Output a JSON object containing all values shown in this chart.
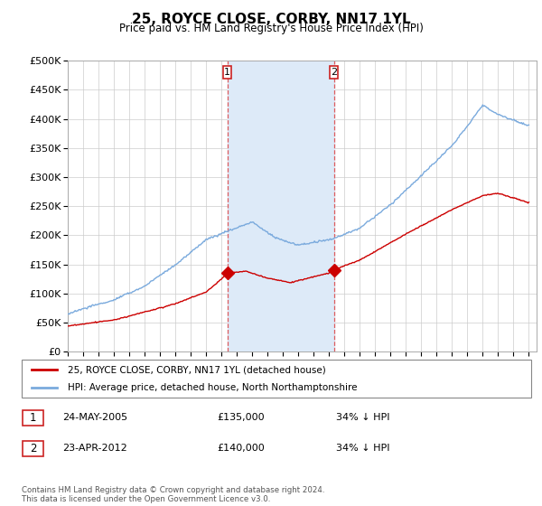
{
  "title": "25, ROYCE CLOSE, CORBY, NN17 1YL",
  "subtitle": "Price paid vs. HM Land Registry's House Price Index (HPI)",
  "ylim": [
    0,
    500000
  ],
  "yticks": [
    0,
    50000,
    100000,
    150000,
    200000,
    250000,
    300000,
    350000,
    400000,
    450000,
    500000
  ],
  "ytick_labels": [
    "£0",
    "£50K",
    "£100K",
    "£150K",
    "£200K",
    "£250K",
    "£300K",
    "£350K",
    "£400K",
    "£450K",
    "£500K"
  ],
  "xlim_start": 1995.0,
  "xlim_end": 2025.5,
  "sale1_x": 2005.39,
  "sale1_y": 135000,
  "sale1_label": "1",
  "sale2_x": 2012.31,
  "sale2_y": 140000,
  "sale2_label": "2",
  "shade_color": "#ddeaf8",
  "vline_color": "#dd4444",
  "red_line_color": "#cc0000",
  "blue_line_color": "#7aaadd",
  "legend_line1": "25, ROYCE CLOSE, CORBY, NN17 1YL (detached house)",
  "legend_line2": "HPI: Average price, detached house, North Northamptonshire",
  "footnote": "Contains HM Land Registry data © Crown copyright and database right 2024.\nThis data is licensed under the Open Government Licence v3.0.",
  "table_row1": [
    "1",
    "24-MAY-2005",
    "£135,000",
    "34% ↓ HPI"
  ],
  "table_row2": [
    "2",
    "23-APR-2012",
    "£140,000",
    "34% ↓ HPI"
  ]
}
